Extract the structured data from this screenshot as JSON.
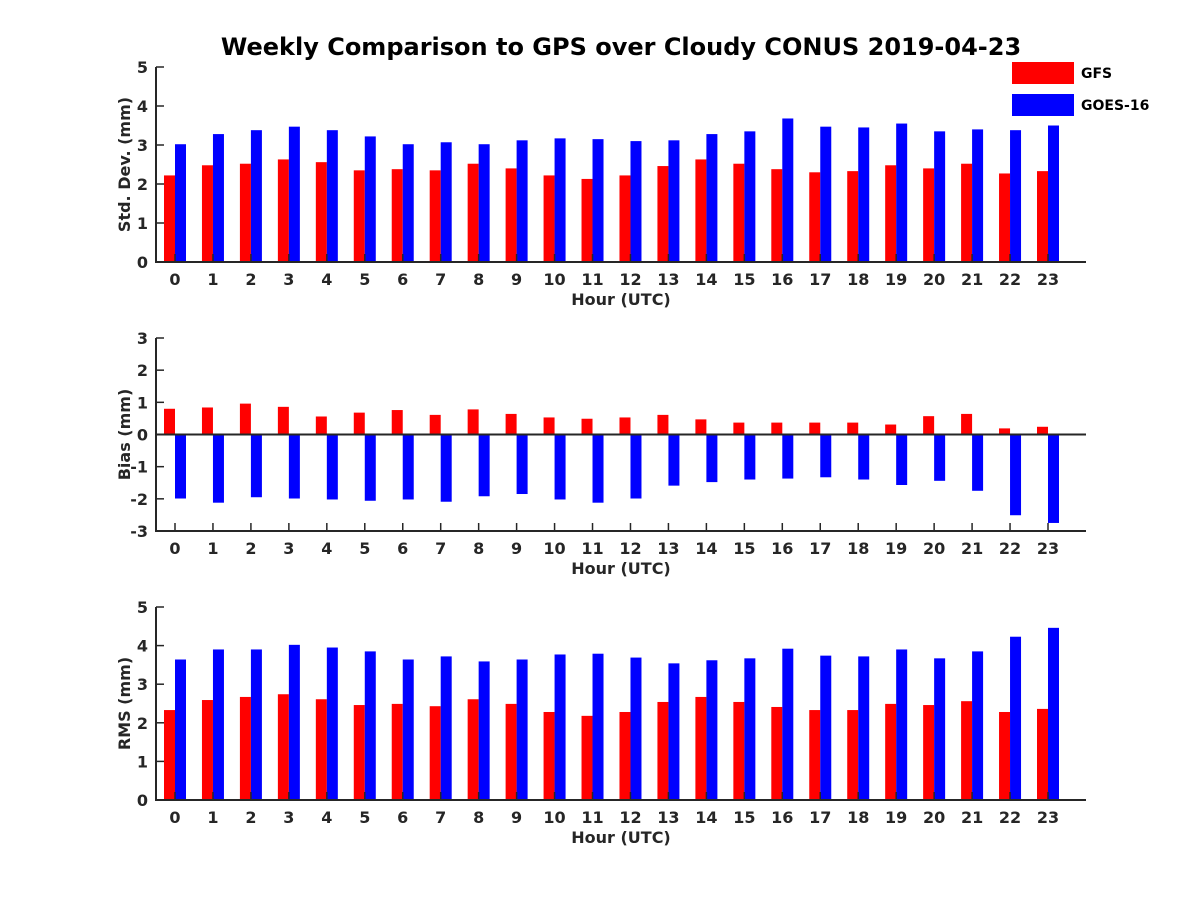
{
  "figure": {
    "title": "Weekly Comparison to GPS over Cloudy CONUS 2019-04-23"
  },
  "legend": {
    "placement": "top-right",
    "entries": [
      {
        "name": "GFS",
        "color": "#ff0000"
      },
      {
        "name": "GOES-16",
        "color": "#0000ff"
      }
    ]
  },
  "chart_data": [
    {
      "type": "bar",
      "xlabel": "Hour (UTC)",
      "ylabel": "Std. Dev. (mm)",
      "ylim": [
        0,
        5
      ],
      "yticks": [
        0,
        1,
        2,
        3,
        4,
        5
      ],
      "categories": [
        "0",
        "1",
        "2",
        "3",
        "4",
        "5",
        "6",
        "7",
        "8",
        "9",
        "10",
        "11",
        "12",
        "13",
        "14",
        "15",
        "16",
        "17",
        "18",
        "19",
        "20",
        "21",
        "22",
        "23"
      ],
      "series": [
        {
          "name": "GFS",
          "color": "#ff0000",
          "values": [
            2.22,
            2.48,
            2.52,
            2.63,
            2.56,
            2.35,
            2.38,
            2.35,
            2.52,
            2.4,
            2.22,
            2.13,
            2.22,
            2.46,
            2.63,
            2.52,
            2.38,
            2.3,
            2.33,
            2.48,
            2.4,
            2.52,
            2.27,
            2.33
          ]
        },
        {
          "name": "GOES-16",
          "color": "#0000ff",
          "values": [
            3.02,
            3.28,
            3.38,
            3.47,
            3.38,
            3.22,
            3.02,
            3.07,
            3.02,
            3.12,
            3.17,
            3.15,
            3.1,
            3.12,
            3.28,
            3.35,
            3.68,
            3.47,
            3.45,
            3.55,
            3.35,
            3.4,
            3.38,
            3.5
          ]
        }
      ]
    },
    {
      "type": "bar",
      "xlabel": "Hour (UTC)",
      "ylabel": "Bias (mm)",
      "ylim": [
        -3,
        3
      ],
      "yticks": [
        -3,
        -2,
        -1,
        0,
        1,
        2,
        3
      ],
      "zero_line": true,
      "categories": [
        "0",
        "1",
        "2",
        "3",
        "4",
        "5",
        "6",
        "7",
        "8",
        "9",
        "10",
        "11",
        "12",
        "13",
        "14",
        "15",
        "16",
        "17",
        "18",
        "19",
        "20",
        "21",
        "22",
        "23"
      ],
      "series": [
        {
          "name": "GFS",
          "color": "#ff0000",
          "values": [
            0.8,
            0.84,
            0.96,
            0.86,
            0.56,
            0.68,
            0.76,
            0.61,
            0.78,
            0.64,
            0.53,
            0.49,
            0.53,
            0.61,
            0.47,
            0.37,
            0.37,
            0.37,
            0.37,
            0.31,
            0.57,
            0.64,
            0.19,
            0.24
          ]
        },
        {
          "name": "GOES-16",
          "color": "#0000ff",
          "values": [
            -1.99,
            -2.12,
            -1.95,
            -1.99,
            -2.02,
            -2.06,
            -2.02,
            -2.09,
            -1.92,
            -1.85,
            -2.02,
            -2.12,
            -1.99,
            -1.59,
            -1.48,
            -1.4,
            -1.37,
            -1.33,
            -1.4,
            -1.57,
            -1.44,
            -1.75,
            -2.51,
            -2.75
          ]
        }
      ]
    },
    {
      "type": "bar",
      "xlabel": "Hour (UTC)",
      "ylabel": "RMS (mm)",
      "ylim": [
        0,
        5
      ],
      "yticks": [
        0,
        1,
        2,
        3,
        4,
        5
      ],
      "categories": [
        "0",
        "1",
        "2",
        "3",
        "4",
        "5",
        "6",
        "7",
        "8",
        "9",
        "10",
        "11",
        "12",
        "13",
        "14",
        "15",
        "16",
        "17",
        "18",
        "19",
        "20",
        "21",
        "22",
        "23"
      ],
      "series": [
        {
          "name": "GFS",
          "color": "#ff0000",
          "values": [
            2.33,
            2.59,
            2.67,
            2.74,
            2.61,
            2.46,
            2.49,
            2.43,
            2.61,
            2.49,
            2.28,
            2.18,
            2.28,
            2.54,
            2.67,
            2.54,
            2.41,
            2.33,
            2.33,
            2.49,
            2.46,
            2.56,
            2.28,
            2.36
          ]
        },
        {
          "name": "GOES-16",
          "color": "#0000ff",
          "values": [
            3.64,
            3.9,
            3.9,
            4.02,
            3.95,
            3.85,
            3.64,
            3.72,
            3.59,
            3.64,
            3.77,
            3.79,
            3.69,
            3.54,
            3.62,
            3.67,
            3.92,
            3.74,
            3.72,
            3.9,
            3.67,
            3.85,
            4.23,
            4.46
          ]
        }
      ]
    }
  ]
}
